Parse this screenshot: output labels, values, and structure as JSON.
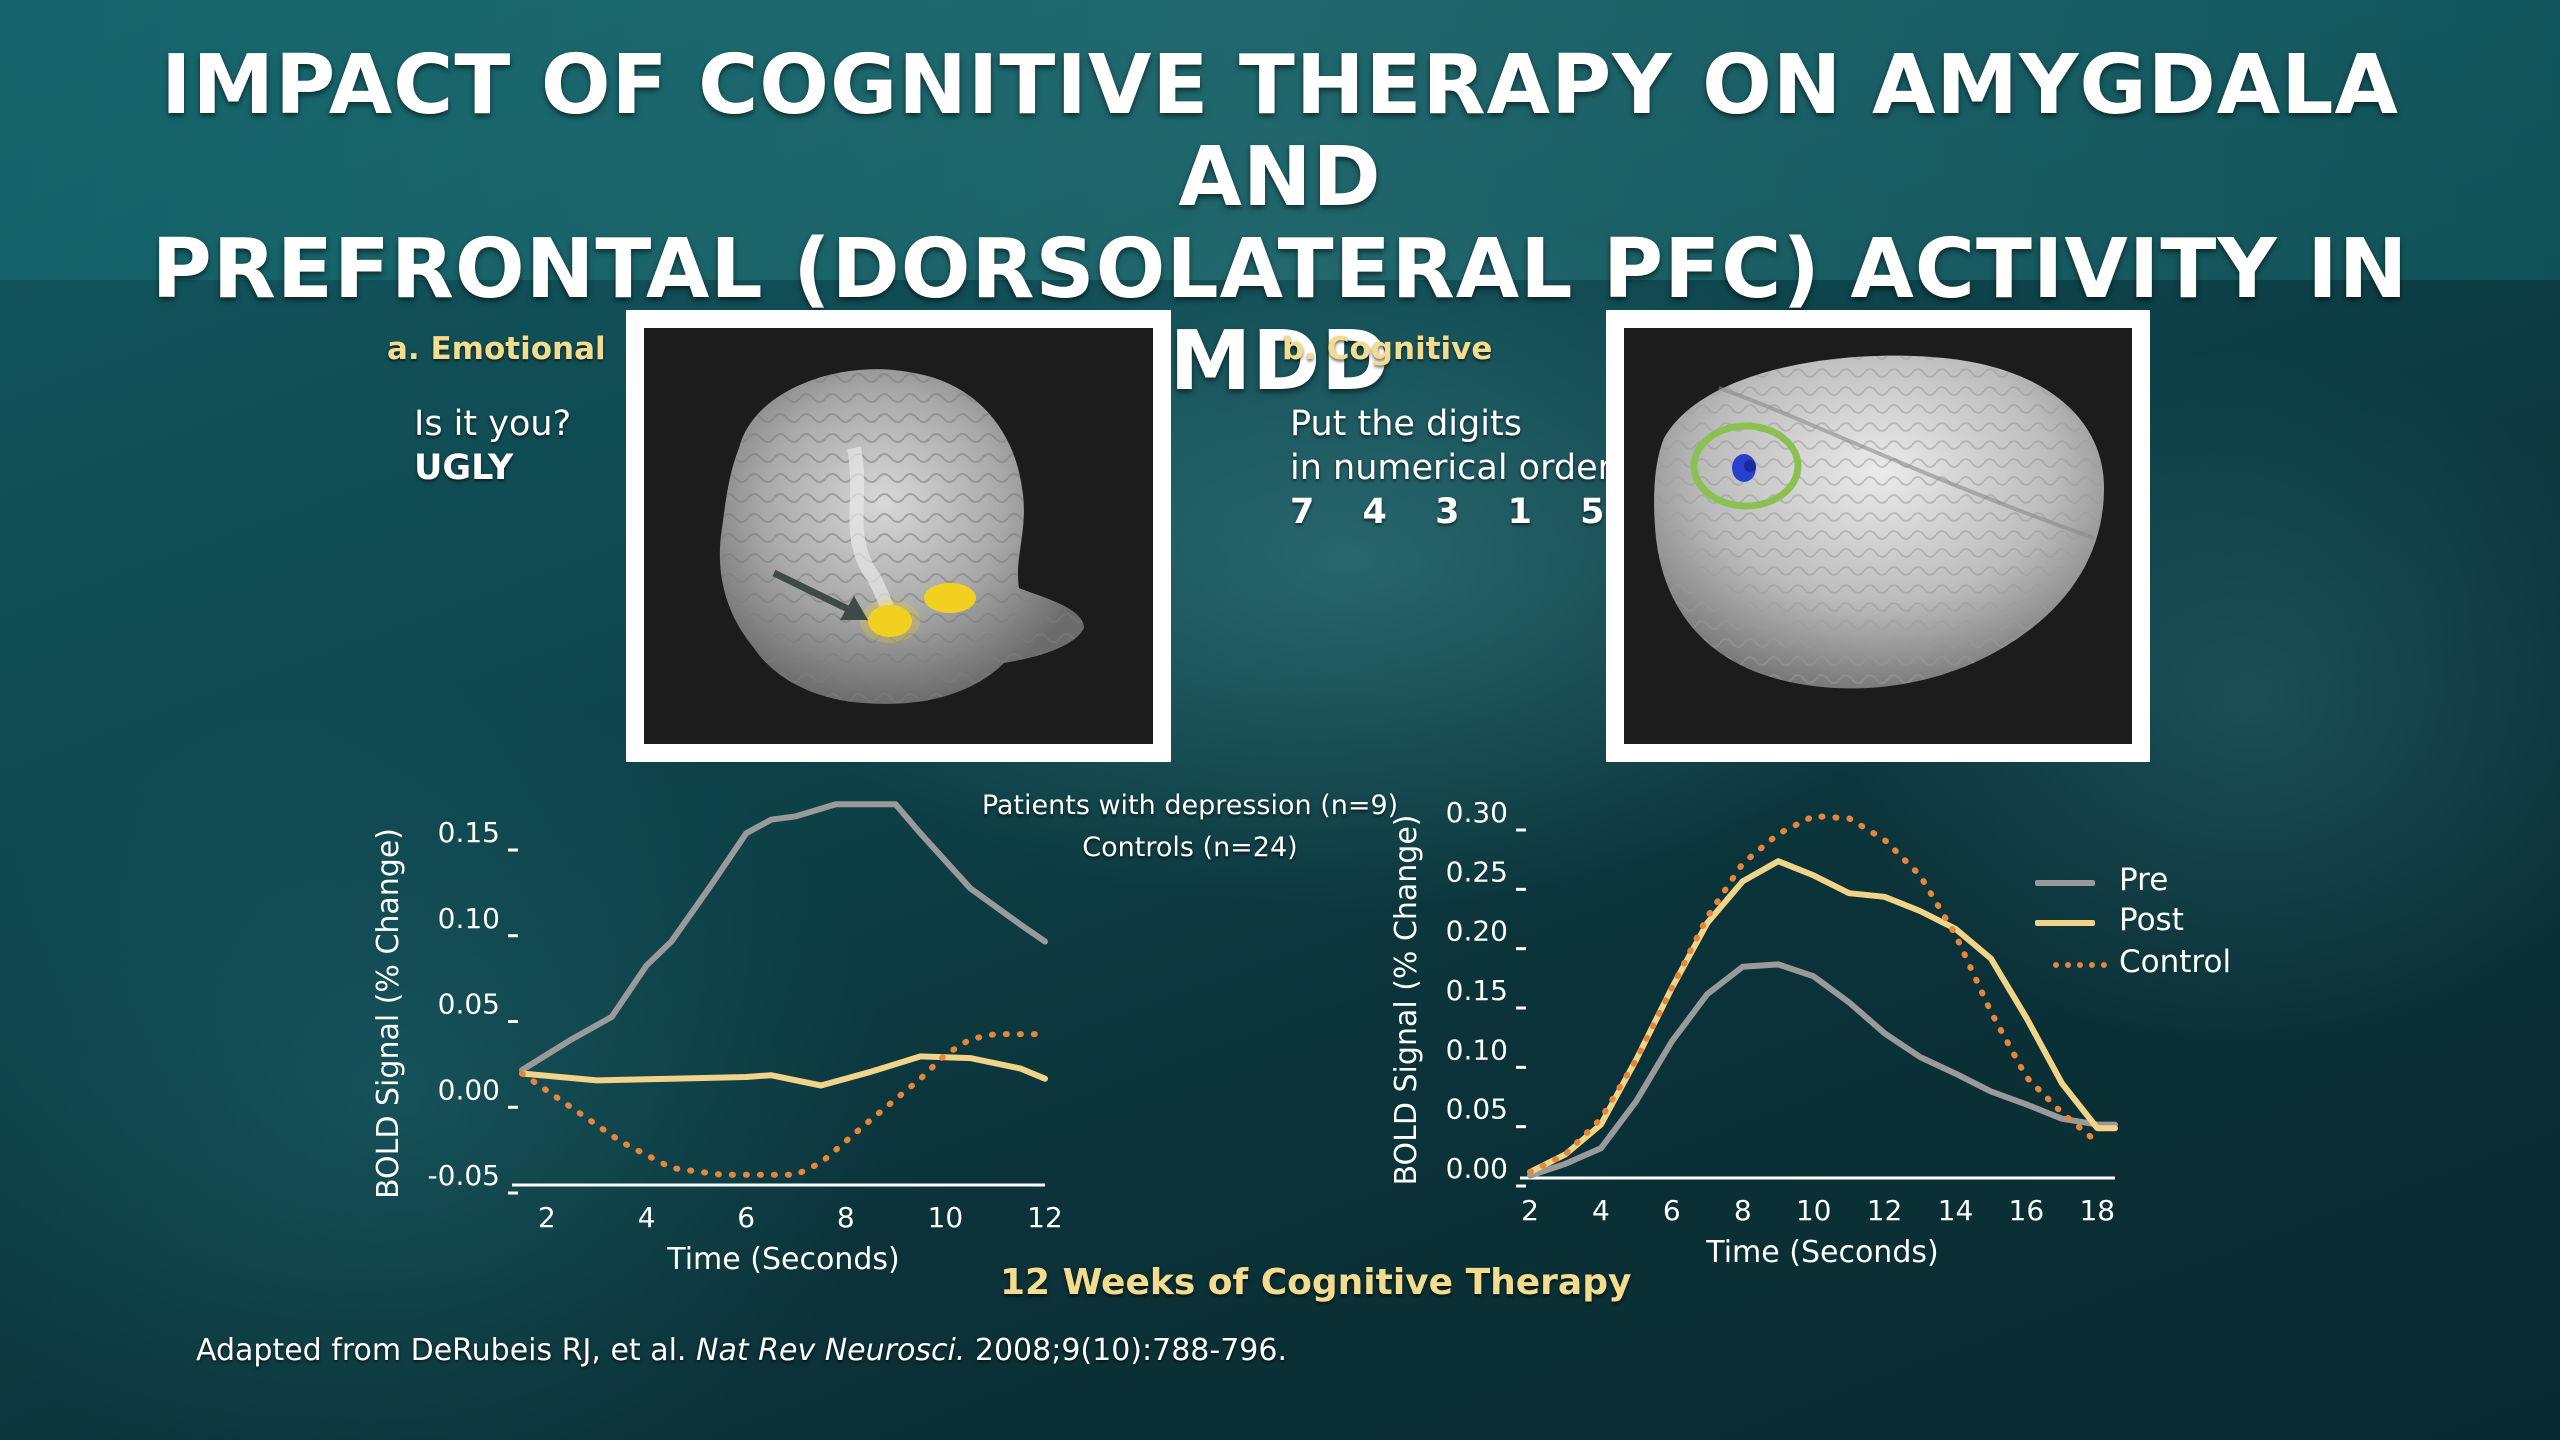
{
  "title": {
    "line1": "IMPACT OF COGNITIVE THERAPY ON AMYGDALA AND",
    "line2": "PREFRONTAL (DORSOLATERAL PFC) ACTIVITY IN MDD"
  },
  "panels": {
    "emotional": {
      "label": "a. Emotional",
      "prompt": "Is it you?",
      "word": "UGLY"
    },
    "cognitive": {
      "label": "b. Cognitive",
      "prompt_line1": "Put the digits",
      "prompt_line2": "in numerical order",
      "digits": "7 4 3 1 5"
    }
  },
  "legend_left": {
    "line1": "Patients with depression (n=9)",
    "line2": "Controls (n=24)"
  },
  "legend_right": [
    "Pre",
    "Post",
    "Control"
  ],
  "colors": {
    "pre": "#9a9a9a",
    "post": "#f1d488",
    "control": "#e5863a",
    "axis": "#ffffff",
    "label_gold": "#f3dc8e",
    "circle_green": "#8cc152",
    "amygdala_yellow": "#f2d020",
    "dlpfc_blue": "#2a3fd0"
  },
  "footer": "12 Weeks of Cognitive Therapy",
  "citation": {
    "prefix": "Adapted from DeRubeis RJ, et al.",
    "journal": "Nat Rev Neurosci.",
    "suffix": "2008;9(10):788-796."
  },
  "icons": {
    "arrow": "arrow-icon",
    "brain_left": "brain-sagittal-image",
    "brain_right": "brain-3d-image"
  },
  "chart_data": [
    {
      "type": "line",
      "title": "",
      "xlabel": "Time (Seconds)",
      "ylabel": "BOLD Signal (% Change)",
      "xlim": [
        1.5,
        12
      ],
      "ylim": [
        -0.05,
        0.15
      ],
      "xticks": [
        2,
        4,
        6,
        8,
        10,
        12
      ],
      "yticks": [
        -0.05,
        0.0,
        0.05,
        0.1,
        0.15
      ],
      "ytick_labels": [
        "-0.05",
        "0.00",
        "0.05",
        "0.10",
        "0.15"
      ],
      "grid": false,
      "legend_position": "top-right",
      "series": [
        {
          "name": "Patients with depression (n=9)",
          "style": "solid",
          "color_key": "pre",
          "x": [
            1.5,
            2.5,
            3.3,
            4.0,
            4.5,
            5.3,
            6.0,
            6.5,
            7.0,
            7.8,
            8.2,
            9.0,
            9.5,
            10.5,
            11.5,
            12.0
          ],
          "y": [
            0.017,
            0.035,
            0.048,
            0.078,
            0.092,
            0.125,
            0.155,
            0.163,
            0.165,
            0.172,
            0.172,
            0.172,
            0.155,
            0.123,
            0.102,
            0.092
          ]
        },
        {
          "name": "Patients with depression (n=9)",
          "style": "solid",
          "color_key": "post",
          "x": [
            1.5,
            3.0,
            4.5,
            6.0,
            6.5,
            7.5,
            8.5,
            9.5,
            10.5,
            11.5,
            12.0
          ],
          "y": [
            0.015,
            0.011,
            0.012,
            0.013,
            0.014,
            0.008,
            0.016,
            0.025,
            0.024,
            0.018,
            0.012
          ]
        },
        {
          "name": "Controls (n=24)",
          "style": "dotted",
          "color_key": "control",
          "x": [
            1.5,
            2.5,
            3.5,
            4.5,
            5.5,
            6.0,
            6.5,
            7.0,
            7.5,
            8.5,
            9.5,
            10.0,
            10.5,
            11.0,
            12.0
          ],
          "y": [
            0.015,
            -0.005,
            -0.025,
            -0.04,
            -0.044,
            -0.044,
            -0.044,
            -0.044,
            -0.037,
            -0.012,
            0.012,
            0.026,
            0.035,
            0.038,
            0.038
          ]
        }
      ]
    },
    {
      "type": "line",
      "title": "",
      "xlabel": "Time (Seconds)",
      "ylabel": "BOLD Signal (% Change)",
      "xlim": [
        2,
        18.5
      ],
      "ylim": [
        0.0,
        0.3
      ],
      "xticks": [
        2,
        4,
        6,
        8,
        10,
        12,
        14,
        16,
        18
      ],
      "yticks": [
        0.0,
        0.05,
        0.1,
        0.15,
        0.2,
        0.25,
        0.3
      ],
      "ytick_labels": [
        "0.00",
        "0.05",
        "0.10",
        "0.15",
        "0.20",
        "0.25",
        "0.30"
      ],
      "grid": false,
      "legend_position": "right",
      "series": [
        {
          "name": "Pre",
          "style": "solid",
          "color_key": "pre",
          "x": [
            2,
            3,
            4,
            5,
            6,
            7,
            8,
            9,
            10,
            11,
            12,
            13,
            14,
            15,
            16,
            17,
            18,
            18.5
          ],
          "y": [
            0.002,
            0.012,
            0.025,
            0.065,
            0.115,
            0.155,
            0.178,
            0.18,
            0.17,
            0.148,
            0.122,
            0.102,
            0.088,
            0.073,
            0.062,
            0.05,
            0.045,
            0.045
          ]
        },
        {
          "name": "Post",
          "style": "solid",
          "color_key": "post",
          "x": [
            2,
            3,
            4,
            5,
            6,
            7,
            8,
            9,
            10,
            11,
            12,
            13,
            14,
            15,
            16,
            17,
            18,
            18.5
          ],
          "y": [
            0.005,
            0.02,
            0.045,
            0.1,
            0.16,
            0.215,
            0.25,
            0.267,
            0.255,
            0.24,
            0.237,
            0.225,
            0.21,
            0.185,
            0.135,
            0.08,
            0.042,
            0.042
          ]
        },
        {
          "name": "Control",
          "style": "dotted",
          "color_key": "control",
          "x": [
            2,
            3,
            4,
            5,
            6,
            7,
            8,
            9,
            10,
            11,
            12,
            13,
            14,
            15,
            16,
            17,
            18
          ],
          "y": [
            0.005,
            0.02,
            0.05,
            0.1,
            0.16,
            0.22,
            0.265,
            0.29,
            0.305,
            0.303,
            0.285,
            0.255,
            0.205,
            0.14,
            0.085,
            0.055,
            0.03
          ]
        }
      ]
    }
  ]
}
